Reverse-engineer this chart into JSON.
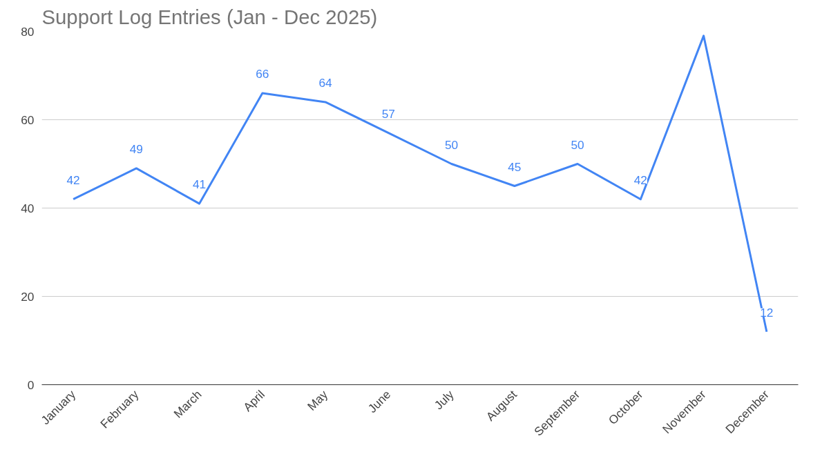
{
  "chart_data": {
    "type": "line",
    "title": "Support Log Entries (Jan - Dec 2025)",
    "categories": [
      "January",
      "February",
      "March",
      "April",
      "May",
      "June",
      "July",
      "August",
      "September",
      "October",
      "November",
      "December"
    ],
    "series": [
      {
        "color": "#4285f4",
        "values": [
          42,
          49,
          41,
          66,
          64,
          57,
          50,
          45,
          50,
          42,
          79,
          12
        ],
        "value_labels": [
          "42",
          "49",
          "41",
          "66",
          "64",
          "57",
          "50",
          "45",
          "50",
          "42",
          null,
          "12"
        ]
      }
    ],
    "ylim": [
      0,
      80
    ],
    "yticks": [
      0,
      20,
      40,
      60,
      80
    ],
    "grid": "y",
    "marker": "none",
    "line_style": "solid"
  }
}
